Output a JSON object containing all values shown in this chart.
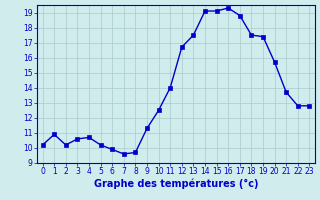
{
  "x": [
    0,
    1,
    2,
    3,
    4,
    5,
    6,
    7,
    8,
    9,
    10,
    11,
    12,
    13,
    14,
    15,
    16,
    17,
    18,
    19,
    20,
    21,
    22,
    23
  ],
  "y": [
    10.2,
    10.9,
    10.2,
    10.6,
    10.7,
    10.2,
    9.9,
    9.6,
    9.7,
    11.3,
    12.5,
    14.0,
    16.7,
    17.5,
    19.1,
    19.1,
    19.3,
    18.8,
    17.5,
    17.4,
    15.7,
    13.7,
    12.8,
    12.8
  ],
  "xlabel": "Graphe des températures (°c)",
  "ylim_min": 9,
  "ylim_max": 19.5,
  "xlim_min": -0.5,
  "xlim_max": 23.5,
  "yticks": [
    9,
    10,
    11,
    12,
    13,
    14,
    15,
    16,
    17,
    18,
    19
  ],
  "xticks": [
    0,
    1,
    2,
    3,
    4,
    5,
    6,
    7,
    8,
    9,
    10,
    11,
    12,
    13,
    14,
    15,
    16,
    17,
    18,
    19,
    20,
    21,
    22,
    23
  ],
  "line_color": "#0000cc",
  "marker_color": "#0000cc",
  "bg_color": "#d0ecec",
  "grid_color": "#aacccc",
  "border_color": "#0000cc",
  "label_color": "#0000cc",
  "xlabel_fontsize": 7.0,
  "tick_fontsize": 5.5,
  "line_width": 1.0,
  "marker_size": 2.2
}
